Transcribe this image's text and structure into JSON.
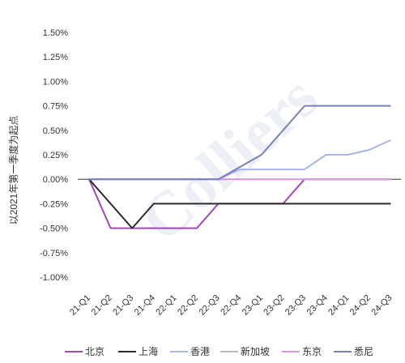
{
  "watermark": "Colliers",
  "chart_data": {
    "type": "line",
    "ylabel": "以2021年第一季度为起点",
    "xlabel": "",
    "categories": [
      "21-Q1",
      "21-Q2",
      "21-Q3",
      "21-Q4",
      "22-Q1",
      "22-Q2",
      "22-Q3",
      "22-Q4",
      "23-Q1",
      "23-Q2",
      "23-Q3",
      "23-Q4",
      "24-Q1",
      "24-Q2",
      "24-Q3"
    ],
    "ylim": [
      -1.0,
      1.5
    ],
    "yticks": [
      -1.0,
      -0.75,
      -0.5,
      -0.25,
      0.0,
      0.25,
      0.5,
      0.75,
      1.0,
      1.25,
      1.5
    ],
    "ytick_labels": [
      "-1.00%",
      "-0.75%",
      "-0.50%",
      "-0.25%",
      "0.00%",
      "0.25%",
      "0.50%",
      "0.75%",
      "1.00%",
      "1.25%",
      "1.50%"
    ],
    "grid": false,
    "legend_position": "bottom",
    "series": [
      {
        "name": "北京",
        "color": "#a347b5",
        "values": [
          0,
          -0.5,
          -0.5,
          -0.5,
          -0.5,
          -0.5,
          -0.25,
          -0.25,
          -0.25,
          -0.25,
          0,
          0,
          0,
          0,
          0
        ]
      },
      {
        "name": "上海",
        "color": "#2b2b2b",
        "values": [
          0,
          -0.25,
          -0.5,
          -0.25,
          -0.25,
          -0.25,
          -0.25,
          -0.25,
          -0.25,
          -0.25,
          -0.25,
          -0.25,
          -0.25,
          -0.25,
          -0.25
        ]
      },
      {
        "name": "香港",
        "color": "#a8b4ee",
        "values": [
          0,
          0,
          0,
          0,
          0,
          0,
          0,
          0.1,
          0.1,
          0.1,
          0.1,
          0.25,
          0.25,
          0.3,
          0.4
        ]
      },
      {
        "name": "新加坡",
        "color": "#bcbcbc",
        "values": [
          0,
          0,
          0,
          0,
          0,
          0,
          0,
          0,
          0,
          0,
          0,
          0,
          0,
          0,
          0
        ]
      },
      {
        "name": "东京",
        "color": "#d89ad8",
        "values": [
          0,
          0,
          0,
          0,
          0,
          0,
          0,
          0,
          0,
          0,
          0,
          0,
          0,
          0,
          0
        ]
      },
      {
        "name": "悉尼",
        "color": "#7581bd",
        "values": [
          0,
          0,
          0,
          0,
          0,
          0,
          0,
          0.125,
          0.25,
          0.5,
          0.75,
          0.75,
          0.75,
          0.75,
          0.75
        ]
      }
    ]
  }
}
